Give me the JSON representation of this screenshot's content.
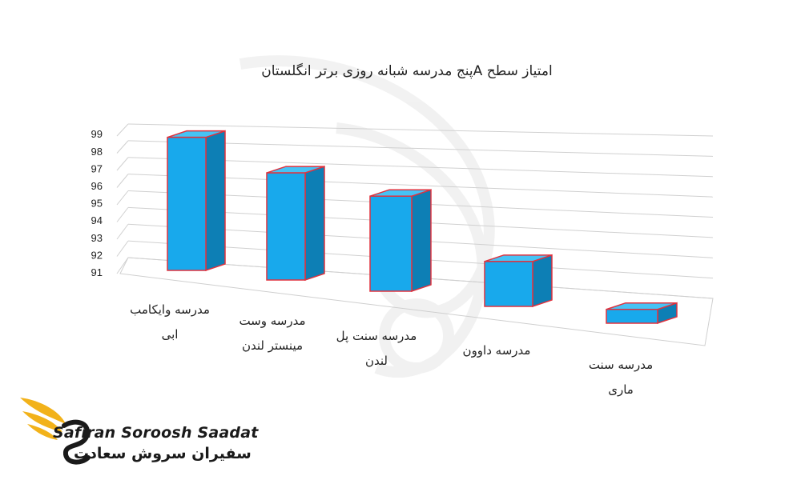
{
  "chart_data": {
    "type": "bar",
    "title": "امتیاز سطح  Aپنج مدرسه شبانه روزی برتر انگلستان",
    "categories": [
      [
        "مدرسه وایکامب",
        "ابی"
      ],
      [
        "مدرسه وست",
        "مینستر لندن"
      ],
      [
        "مدرسه سنت پل",
        "لندن"
      ],
      [
        "مدرسه داوون"
      ],
      [
        "مدرسه سنت",
        "ماری"
      ]
    ],
    "values": [
      98.7,
      97.2,
      96.5,
      93.6,
      91.8
    ],
    "ylim": [
      91,
      99
    ],
    "yticks": [
      "91",
      "92",
      "93",
      "94",
      "95",
      "96",
      "97",
      "98",
      "99"
    ],
    "grid": true,
    "colors": {
      "bar_front": "#18a9ec",
      "bar_side": "#0d7fb5",
      "bar_top": "#46c3f5",
      "bar_edge": "#e0323e"
    }
  },
  "logo": {
    "name_en": "Safiran Soroosh Saadat",
    "name_fa": "سفیران سروش سعادت",
    "accent": "#f2b21a"
  }
}
